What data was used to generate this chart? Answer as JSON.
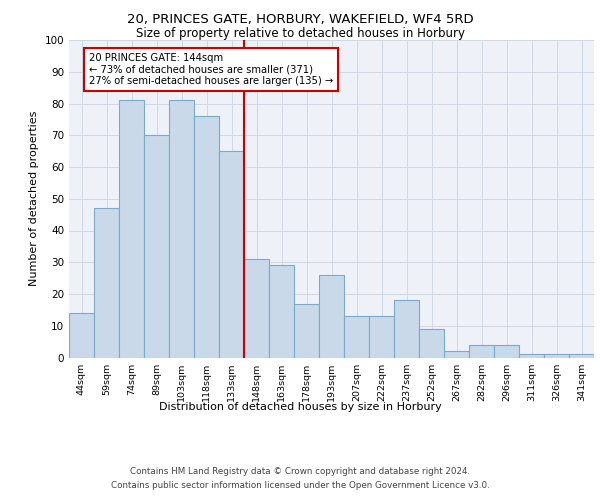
{
  "title1": "20, PRINCES GATE, HORBURY, WAKEFIELD, WF4 5RD",
  "title2": "Size of property relative to detached houses in Horbury",
  "xlabel": "Distribution of detached houses by size in Horbury",
  "ylabel": "Number of detached properties",
  "categories": [
    "44sqm",
    "59sqm",
    "74sqm",
    "89sqm",
    "103sqm",
    "118sqm",
    "133sqm",
    "148sqm",
    "163sqm",
    "178sqm",
    "193sqm",
    "207sqm",
    "222sqm",
    "237sqm",
    "252sqm",
    "267sqm",
    "282sqm",
    "296sqm",
    "311sqm",
    "326sqm",
    "341sqm"
  ],
  "values": [
    14,
    47,
    81,
    70,
    81,
    76,
    65,
    31,
    29,
    17,
    26,
    13,
    13,
    18,
    9,
    2,
    4,
    4,
    1,
    1,
    1
  ],
  "bar_color": "#c9d9ea",
  "bar_edge_color": "#7aaac8",
  "grid_color": "#d0d8e8",
  "background_color": "#eef2f8",
  "vline_x_index": 7,
  "vline_color": "#cc0000",
  "annotation_text": "20 PRINCES GATE: 144sqm\n← 73% of detached houses are smaller (371)\n27% of semi-detached houses are larger (135) →",
  "annotation_box_color": "#ffffff",
  "annotation_box_edge_color": "#cc0000",
  "ylim": [
    0,
    100
  ],
  "yticks": [
    0,
    10,
    20,
    30,
    40,
    50,
    60,
    70,
    80,
    90,
    100
  ],
  "footer1": "Contains HM Land Registry data © Crown copyright and database right 2024.",
  "footer2": "Contains public sector information licensed under the Open Government Licence v3.0."
}
